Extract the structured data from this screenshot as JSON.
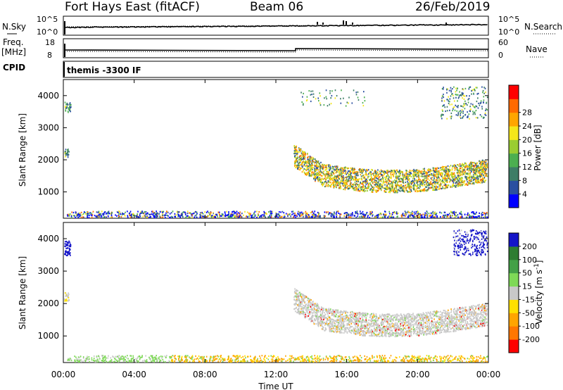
{
  "header": {
    "station": "Fort Hays East (fitACF)",
    "beam": "Beam 06",
    "date": "26/Feb/2019"
  },
  "top_panels": {
    "nsky_label": "N.Sky",
    "nsearch_label": "N.Search",
    "nsky_ticks": [
      "10^5",
      "10^0"
    ],
    "nsearch_ticks": [
      "10^5",
      "10^0"
    ],
    "freq_label": "Freq.",
    "freq_unit": "[MHz]",
    "freq_ticks": [
      "18",
      "8"
    ],
    "nave_label": "Nave",
    "nave_ticks": [
      "60",
      "0"
    ],
    "cpid_label": "CPID",
    "cpid_value": "themis -3300 IF"
  },
  "axes": {
    "ylabel": "Slant Range [km]",
    "xlabel": "Time UT",
    "y_ticks": [
      "1000",
      "2000",
      "3000",
      "4000"
    ],
    "x_ticks": [
      "00:00",
      "04:00",
      "08:00",
      "12:00",
      "16:00",
      "20:00",
      "00:00"
    ]
  },
  "colors": {
    "power": [
      "#0000ff",
      "#2a4fa0",
      "#3d7d66",
      "#4caf50",
      "#9acd32",
      "#f4e61a",
      "#ffa500",
      "#ff6a00",
      "#ff0000"
    ],
    "velocity": [
      "#1414c8",
      "#2e7d32",
      "#43a047",
      "#7ed957",
      "#c8c8c8",
      "#ffe000",
      "#ffa500",
      "#ff7700",
      "#ff0000"
    ]
  },
  "chart_data": [
    {
      "type": "heatmap",
      "name": "power",
      "x_range_hours": [
        0,
        24
      ],
      "y_range_km": [
        180,
        4500
      ],
      "colorbar_label": "Power [dB]",
      "colorbar_ticks": [
        "4",
        "8",
        "12",
        "16",
        "20",
        "24",
        "28"
      ],
      "scatter_regions": [
        {
          "t": [
            0.0,
            0.4
          ],
          "r": [
            3500,
            3850
          ],
          "n": 40
        },
        {
          "t": [
            0.0,
            0.3
          ],
          "r": [
            2100,
            2350
          ],
          "n": 30
        },
        {
          "t": [
            13.0,
            24.0
          ],
          "r": [
            1200,
            2300
          ],
          "n": 2600,
          "shape": "arc"
        },
        {
          "t": [
            13.0,
            17.0
          ],
          "r": [
            3700,
            4200
          ],
          "n": 60
        },
        {
          "t": [
            21.3,
            24.0
          ],
          "r": [
            3300,
            4300
          ],
          "n": 220
        },
        {
          "t": [
            0.2,
            24.0
          ],
          "r": [
            180,
            420
          ],
          "n": 1800
        }
      ]
    },
    {
      "type": "heatmap",
      "name": "velocity",
      "x_range_hours": [
        0,
        24
      ],
      "y_range_km": [
        180,
        4500
      ],
      "colorbar_label": "Velocity [m s^-1]",
      "colorbar_ticks": [
        "200",
        "100",
        "50",
        "15",
        "-15",
        "-50",
        "-100",
        "-200"
      ],
      "scatter_regions": [
        {
          "t": [
            0.0,
            0.4
          ],
          "r": [
            3500,
            3950
          ],
          "n": 60
        },
        {
          "t": [
            0.0,
            0.3
          ],
          "r": [
            2100,
            2350
          ],
          "n": 30
        },
        {
          "t": [
            13.0,
            24.0
          ],
          "r": [
            1200,
            2300
          ],
          "n": 2600,
          "shape": "arc"
        },
        {
          "t": [
            22.0,
            24.0
          ],
          "r": [
            3500,
            4300
          ],
          "n": 260
        },
        {
          "t": [
            0.2,
            24.0
          ],
          "r": [
            180,
            420
          ],
          "n": 1600
        }
      ]
    }
  ]
}
